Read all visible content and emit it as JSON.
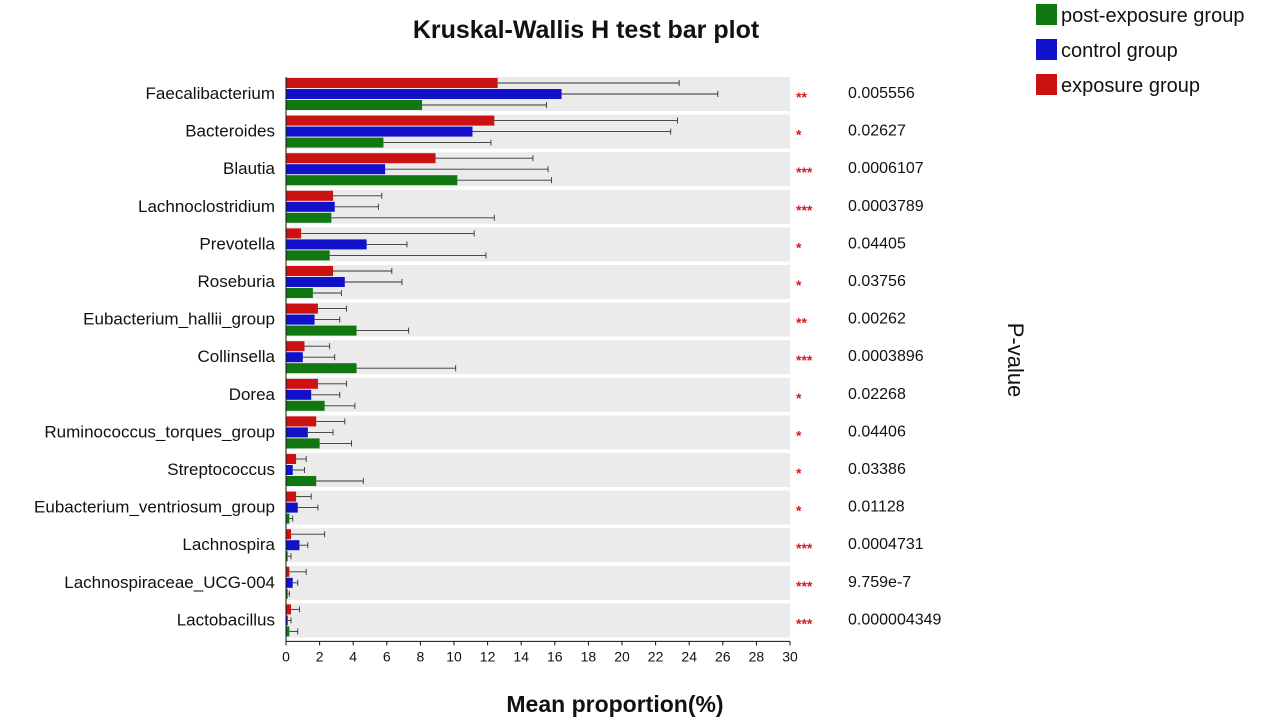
{
  "chart_data": {
    "type": "bar",
    "orientation": "horizontal",
    "title": "Kruskal-Wallis H test bar plot",
    "xlabel": "Mean proportion(%)",
    "right_label": "P-value",
    "xlim": [
      0,
      30
    ],
    "xticks": [
      0,
      2,
      4,
      6,
      8,
      10,
      12,
      14,
      16,
      18,
      20,
      22,
      24,
      26,
      28,
      30
    ],
    "categories": [
      "Faecalibacterium",
      "Bacteroides",
      "Blautia",
      "Lachnoclostridium",
      "Prevotella",
      "Roseburia",
      "Eubacterium_hallii_group",
      "Collinsella",
      "Dorea",
      "Ruminococcus_torques_group",
      "Streptococcus",
      "Eubacterium_ventriosum_group",
      "Lachnospira",
      "Lachnospiraceae_UCG-004",
      "Lactobacillus"
    ],
    "series": [
      {
        "name": "exposure group",
        "color": "#cc1111",
        "values": [
          12.6,
          12.4,
          8.9,
          2.8,
          0.9,
          2.8,
          1.9,
          1.1,
          1.9,
          1.8,
          0.6,
          0.6,
          0.3,
          0.2,
          0.3
        ],
        "error_upper": [
          23.4,
          23.3,
          14.7,
          5.7,
          11.2,
          6.3,
          3.6,
          2.6,
          3.6,
          3.5,
          1.2,
          1.5,
          2.3,
          1.2,
          0.8
        ]
      },
      {
        "name": "control group",
        "color": "#1111cc",
        "values": [
          16.4,
          11.1,
          5.9,
          2.9,
          4.8,
          3.5,
          1.7,
          1.0,
          1.5,
          1.3,
          0.4,
          0.7,
          0.8,
          0.4,
          0.1
        ],
        "error_upper": [
          25.7,
          22.9,
          15.6,
          5.5,
          7.2,
          6.9,
          3.2,
          2.9,
          3.2,
          2.8,
          1.1,
          1.9,
          1.3,
          0.7,
          0.3
        ]
      },
      {
        "name": "post-exposure group",
        "color": "#117711",
        "values": [
          8.1,
          5.8,
          10.2,
          2.7,
          2.6,
          1.6,
          4.2,
          4.2,
          2.3,
          2.0,
          1.8,
          0.2,
          0.1,
          0.1,
          0.2
        ],
        "error_upper": [
          15.5,
          12.2,
          15.8,
          12.4,
          11.9,
          3.3,
          7.3,
          10.1,
          4.1,
          3.9,
          4.6,
          0.4,
          0.3,
          0.2,
          0.7
        ]
      }
    ],
    "significance": [
      "**",
      "*",
      "***",
      "***",
      "*",
      "*",
      "**",
      "***",
      "*",
      "*",
      "*",
      "*",
      "***",
      "***",
      "***"
    ],
    "p_values": [
      "0.005556",
      "0.02627",
      "0.0006107",
      "0.0003789",
      "0.04405",
      "0.03756",
      "0.00262",
      "0.0003896",
      "0.02268",
      "0.04406",
      "0.03386",
      "0.01128",
      "0.0004731",
      "9.759e-7",
      "0.000004349"
    ],
    "legend": {
      "placement": "top-right",
      "order": [
        "post-exposure group",
        "control group",
        "exposure group"
      ]
    },
    "grid": false,
    "row_background": "#ebebeb",
    "significance_color": "#d91a1a"
  }
}
